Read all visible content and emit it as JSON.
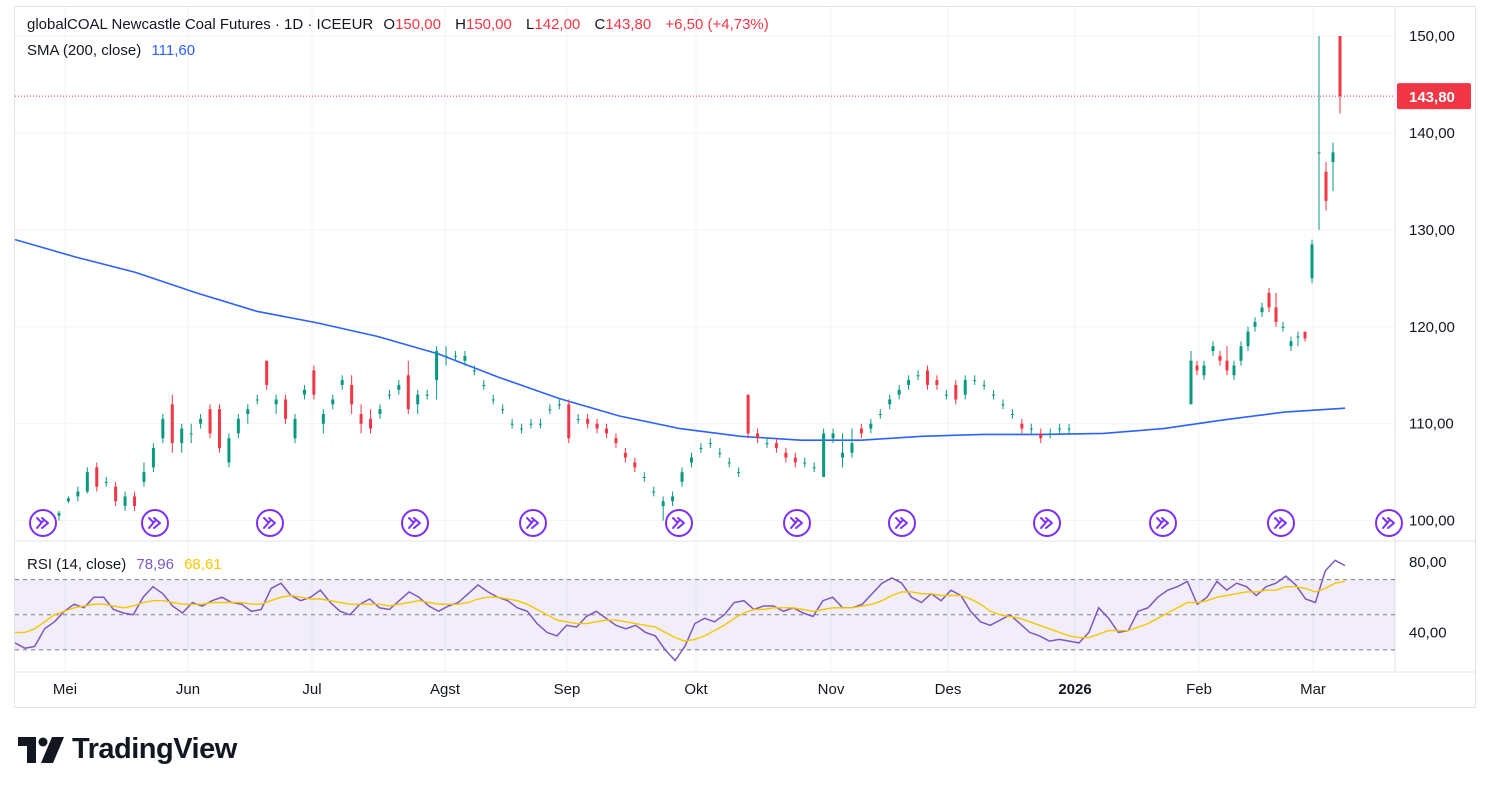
{
  "header": {
    "symbol": "globalCOAL Newcastle Coal Futures · 1D · ICEEUR",
    "o_label": "O",
    "o_value": "150,00",
    "h_label": "H",
    "h_value": "150,00",
    "l_label": "L",
    "l_value": "142,00",
    "c_label": "C",
    "c_value": "143,80",
    "change": "+6,50 (+4,73%)"
  },
  "sma_legend": {
    "label": "SMA (200, close)",
    "value": "111,60"
  },
  "rsi_legend": {
    "label": "RSI (14, close)",
    "value": "78,96",
    "ma_value": "68,61"
  },
  "price_tag": "143,80",
  "brand": "TradingView",
  "colors": {
    "up": "#089981",
    "down": "#f23645",
    "sma": "#2962ff",
    "rsi": "#7e57c2",
    "rsi_ma": "#f7c600",
    "event": "#7b2ff7"
  },
  "chart_data": [
    {
      "type": "candlestick",
      "title": "globalCOAL Newcastle Coal Futures · 1D · ICEEUR",
      "y_ticks": [
        "150,00",
        "140,00",
        "130,00",
        "120,00",
        "110,00",
        "100,00"
      ],
      "ylim": [
        98,
        153
      ],
      "x_labels": [
        "Mei",
        "Jun",
        "Jul",
        "Agst",
        "Sep",
        "Okt",
        "Nov",
        "Des",
        "2026",
        "Feb",
        "Mar"
      ],
      "last_close": 143.8,
      "sma200": [
        [
          0,
          129.0
        ],
        [
          20,
          127.2
        ],
        [
          40,
          125.6
        ],
        [
          60,
          123.5
        ],
        [
          80,
          121.6
        ],
        [
          100,
          120.4
        ],
        [
          120,
          119.0
        ],
        [
          140,
          117.2
        ],
        [
          160,
          114.8
        ],
        [
          180,
          112.6
        ],
        [
          200,
          110.8
        ],
        [
          220,
          109.5
        ],
        [
          240,
          108.7
        ],
        [
          260,
          108.3
        ],
        [
          280,
          108.3
        ],
        [
          300,
          108.7
        ],
        [
          320,
          108.9
        ],
        [
          340,
          108.9
        ],
        [
          360,
          109.0
        ],
        [
          380,
          109.5
        ],
        [
          400,
          110.4
        ],
        [
          420,
          111.2
        ],
        [
          440,
          111.6
        ]
      ],
      "candles": [
        [
          0,
          100.5,
          101.0,
          100.0,
          100.8
        ],
        [
          4,
          102.0,
          102.5,
          101.8,
          102.3
        ],
        [
          8,
          102.5,
          103.5,
          102.0,
          103.0
        ],
        [
          12,
          103.0,
          105.5,
          102.8,
          105.0
        ],
        [
          16,
          105.5,
          106.0,
          103.0,
          103.5
        ],
        [
          20,
          104.0,
          104.5,
          103.5,
          104.0
        ],
        [
          24,
          103.5,
          104.0,
          101.5,
          102.0
        ],
        [
          28,
          101.5,
          103.0,
          101.0,
          102.5
        ],
        [
          32,
          102.5,
          103.0,
          101.0,
          101.5
        ],
        [
          36,
          104.0,
          106.0,
          103.5,
          105.0
        ],
        [
          40,
          105.5,
          108.0,
          105.0,
          107.5
        ],
        [
          44,
          108.5,
          111.0,
          108.0,
          110.5
        ],
        [
          48,
          112.0,
          113.0,
          107.0,
          108.0
        ],
        [
          52,
          108.0,
          110.0,
          107.0,
          109.5
        ],
        [
          56,
          109.0,
          110.0,
          108.0,
          109.0
        ],
        [
          60,
          110.0,
          111.0,
          109.5,
          110.5
        ],
        [
          64,
          111.5,
          112.0,
          108.5,
          109.0
        ],
        [
          68,
          111.5,
          112.0,
          107.0,
          107.5
        ],
        [
          72,
          106.0,
          109.0,
          105.5,
          108.5
        ],
        [
          76,
          109.0,
          111.0,
          108.5,
          110.5
        ],
        [
          80,
          111.0,
          112.0,
          110.0,
          111.5
        ],
        [
          84,
          112.5,
          113.0,
          112.0,
          112.5
        ],
        [
          88,
          116.5,
          116.5,
          113.5,
          114.0
        ],
        [
          92,
          112.0,
          113.0,
          111.0,
          112.5
        ],
        [
          96,
          112.5,
          113.0,
          110.0,
          110.5
        ],
        [
          100,
          108.5,
          111.0,
          108.0,
          110.5
        ],
        [
          104,
          113.0,
          114.0,
          112.5,
          113.5
        ],
        [
          108,
          115.5,
          116.0,
          112.5,
          113.0
        ],
        [
          112,
          110.0,
          111.5,
          109.0,
          111.0
        ],
        [
          116,
          112.0,
          113.0,
          111.5,
          112.5
        ],
        [
          120,
          114.0,
          115.0,
          113.5,
          114.5
        ],
        [
          124,
          114.0,
          115.0,
          111.0,
          112.0
        ],
        [
          128,
          111.0,
          112.0,
          109.0,
          110.0
        ],
        [
          132,
          110.5,
          111.5,
          109.0,
          109.5
        ],
        [
          136,
          111.0,
          112.0,
          110.5,
          111.5
        ],
        [
          140,
          113.0,
          113.5,
          112.5,
          113.0
        ],
        [
          144,
          113.5,
          114.5,
          113.0,
          114.0
        ],
        [
          148,
          115.0,
          116.5,
          111.0,
          111.5
        ],
        [
          152,
          112.0,
          113.5,
          111.0,
          113.0
        ],
        [
          156,
          113.0,
          113.5,
          112.5,
          113.0
        ],
        [
          160,
          114.5,
          118.0,
          112.5,
          117.5
        ],
        [
          164,
          117.0,
          118.0,
          116.0,
          117.0
        ],
        [
          168,
          117.0,
          117.5,
          116.5,
          117.0
        ],
        [
          172,
          116.5,
          117.5,
          116.0,
          117.0
        ],
        [
          176,
          115.5,
          116.0,
          115.0,
          115.5
        ],
        [
          180,
          114.0,
          114.5,
          113.5,
          114.0
        ],
        [
          184,
          112.5,
          113.0,
          112.0,
          112.5
        ],
        [
          188,
          111.5,
          112.0,
          111.0,
          111.5
        ],
        [
          192,
          110.0,
          110.5,
          109.5,
          110.0
        ],
        [
          196,
          109.5,
          110.0,
          109.0,
          109.5
        ],
        [
          200,
          110.0,
          110.5,
          109.5,
          110.0
        ],
        [
          204,
          110.0,
          110.5,
          109.5,
          110.0
        ],
        [
          208,
          111.5,
          112.0,
          111.0,
          111.5
        ],
        [
          212,
          112.0,
          112.5,
          111.5,
          112.0
        ],
        [
          216,
          112.0,
          112.5,
          108.0,
          108.5
        ],
        [
          220,
          110.5,
          111.0,
          110.0,
          110.5
        ],
        [
          224,
          110.5,
          111.0,
          109.5,
          110.0
        ],
        [
          228,
          110.0,
          110.5,
          109.0,
          109.5
        ],
        [
          232,
          109.5,
          110.0,
          108.5,
          109.0
        ],
        [
          236,
          108.5,
          109.0,
          107.5,
          108.0
        ],
        [
          240,
          107.0,
          107.5,
          106.0,
          106.5
        ],
        [
          244,
          106.0,
          106.5,
          105.0,
          105.5
        ],
        [
          248,
          104.5,
          105.0,
          104.0,
          104.5
        ],
        [
          252,
          103.0,
          103.5,
          102.5,
          103.0
        ],
        [
          256,
          101.5,
          102.5,
          100.0,
          102.0
        ],
        [
          260,
          102.0,
          103.0,
          101.5,
          102.5
        ],
        [
          264,
          104.0,
          105.5,
          103.5,
          105.0
        ],
        [
          268,
          106.0,
          107.0,
          105.5,
          106.5
        ],
        [
          272,
          107.5,
          108.0,
          107.0,
          107.5
        ],
        [
          276,
          108.0,
          108.5,
          107.5,
          108.0
        ],
        [
          280,
          107.0,
          107.5,
          106.5,
          107.0
        ],
        [
          284,
          106.0,
          106.5,
          105.5,
          106.0
        ],
        [
          288,
          105.0,
          105.5,
          104.5,
          105.0
        ],
        [
          292,
          113.0,
          113.0,
          108.5,
          109.0
        ],
        [
          296,
          109.0,
          109.5,
          108.0,
          108.5
        ],
        [
          300,
          108.0,
          108.5,
          107.5,
          108.0
        ],
        [
          304,
          108.0,
          108.5,
          107.0,
          107.5
        ],
        [
          308,
          107.0,
          107.5,
          106.0,
          106.5
        ],
        [
          312,
          106.5,
          107.0,
          105.5,
          106.0
        ],
        [
          316,
          106.0,
          106.5,
          105.5,
          106.0
        ],
        [
          320,
          105.5,
          106.0,
          105.0,
          105.5
        ],
        [
          324,
          104.5,
          109.5,
          104.5,
          109.0
        ],
        [
          328,
          108.5,
          109.5,
          108.0,
          109.0
        ],
        [
          332,
          106.5,
          109.0,
          105.5,
          107.0
        ],
        [
          336,
          107.0,
          109.5,
          106.5,
          108.0
        ],
        [
          340,
          109.5,
          110.0,
          108.5,
          109.0
        ],
        [
          344,
          109.5,
          110.5,
          109.0,
          110.0
        ],
        [
          348,
          111.0,
          111.5,
          110.5,
          111.0
        ],
        [
          352,
          112.0,
          113.0,
          111.5,
          112.5
        ],
        [
          356,
          113.0,
          114.0,
          112.5,
          113.5
        ],
        [
          360,
          114.0,
          115.0,
          113.5,
          114.5
        ],
        [
          364,
          115.0,
          115.5,
          114.5,
          115.0
        ],
        [
          368,
          115.5,
          116.0,
          113.5,
          114.0
        ],
        [
          372,
          114.5,
          115.0,
          113.5,
          114.0
        ],
        [
          376,
          113.0,
          113.5,
          112.5,
          113.0
        ],
        [
          380,
          114.0,
          114.5,
          112.0,
          112.5
        ],
        [
          384,
          113.0,
          115.0,
          112.5,
          114.5
        ],
        [
          388,
          114.5,
          115.0,
          114.0,
          114.5
        ],
        [
          392,
          114.0,
          114.5,
          113.5,
          114.0
        ],
        [
          396,
          113.0,
          113.5,
          112.5,
          113.0
        ],
        [
          400,
          112.0,
          112.5,
          111.5,
          112.0
        ],
        [
          404,
          111.0,
          111.5,
          110.5,
          111.0
        ],
        [
          408,
          110.0,
          110.5,
          109.0,
          109.5
        ],
        [
          412,
          109.5,
          110.0,
          109.0,
          109.5
        ],
        [
          416,
          109.0,
          109.5,
          108.0,
          108.5
        ],
        [
          420,
          109.0,
          109.5,
          108.5,
          109.0
        ],
        [
          424,
          109.5,
          110.0,
          109.0,
          109.5
        ],
        [
          428,
          109.5,
          110.0,
          109.0,
          109.5
        ]
      ]
    },
    {
      "type": "line",
      "title": "RSI (14, close)",
      "y_ticks": [
        "80,00",
        "40,00"
      ],
      "band": [
        30,
        70
      ],
      "ylim": [
        18,
        92
      ],
      "last_rsi": 78.96,
      "last_ma": 68.61
    }
  ]
}
